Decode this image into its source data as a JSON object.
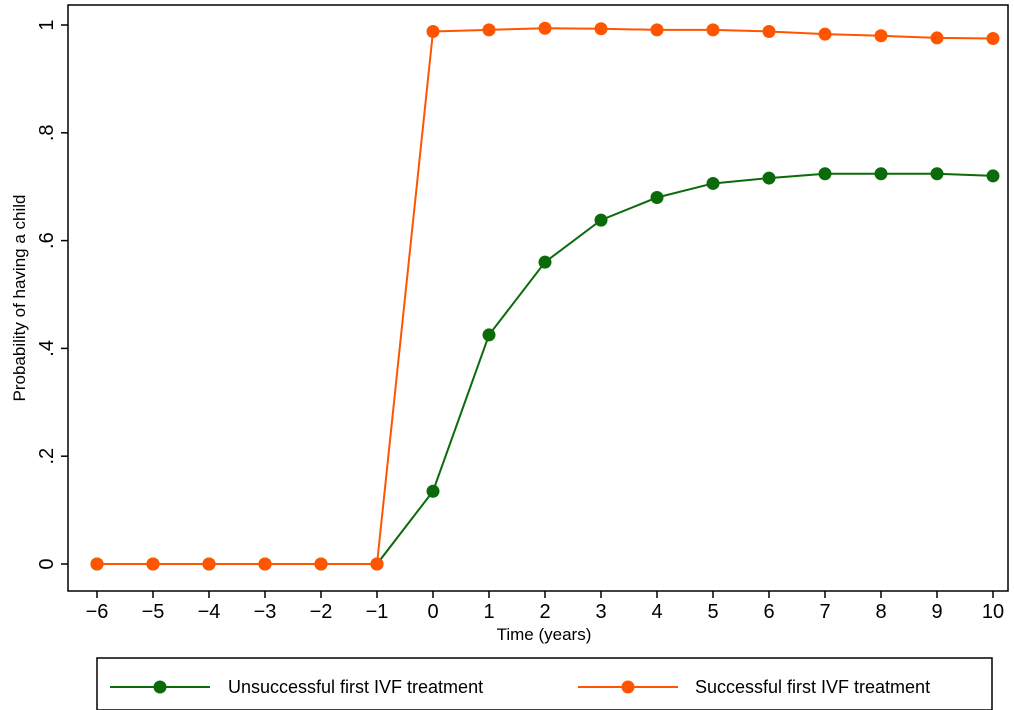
{
  "chart_data": {
    "type": "line",
    "title": "",
    "xlabel": "Time (years)",
    "ylabel": "Probability of having a child",
    "xlim": [
      -6,
      10
    ],
    "ylim": [
      0,
      1
    ],
    "x_ticks": [
      -6,
      -5,
      -4,
      -3,
      -2,
      -1,
      0,
      1,
      2,
      3,
      4,
      5,
      6,
      7,
      8,
      9,
      10
    ],
    "x_tick_labels": [
      "−6",
      "−5",
      "−4",
      "−3",
      "−2",
      "−1",
      "0",
      "1",
      "2",
      "3",
      "4",
      "5",
      "6",
      "7",
      "8",
      "9",
      "10"
    ],
    "y_ticks": [
      0,
      0.2,
      0.4,
      0.6,
      0.8,
      1
    ],
    "y_tick_labels": [
      "0",
      ".2",
      ".4",
      ".6",
      ".8",
      "1"
    ],
    "grid": false,
    "legend_position": "bottom",
    "x": [
      -6,
      -5,
      -4,
      -3,
      -2,
      -1,
      0,
      1,
      2,
      3,
      4,
      5,
      6,
      7,
      8,
      9,
      10
    ],
    "series": [
      {
        "name": "Unsuccessful first IVF treatment",
        "color": "#0b6b0b",
        "values": [
          0,
          0,
          0,
          0,
          0,
          0,
          0.135,
          0.425,
          0.56,
          0.638,
          0.68,
          0.706,
          0.716,
          0.724,
          0.724,
          0.724,
          0.72
        ]
      },
      {
        "name": "Successful first IVF treatment",
        "color": "#ff5500",
        "values": [
          0,
          0,
          0,
          0,
          0,
          0,
          0.988,
          0.991,
          0.994,
          0.993,
          0.991,
          0.991,
          0.988,
          0.983,
          0.98,
          0.976,
          0.975
        ]
      }
    ]
  }
}
